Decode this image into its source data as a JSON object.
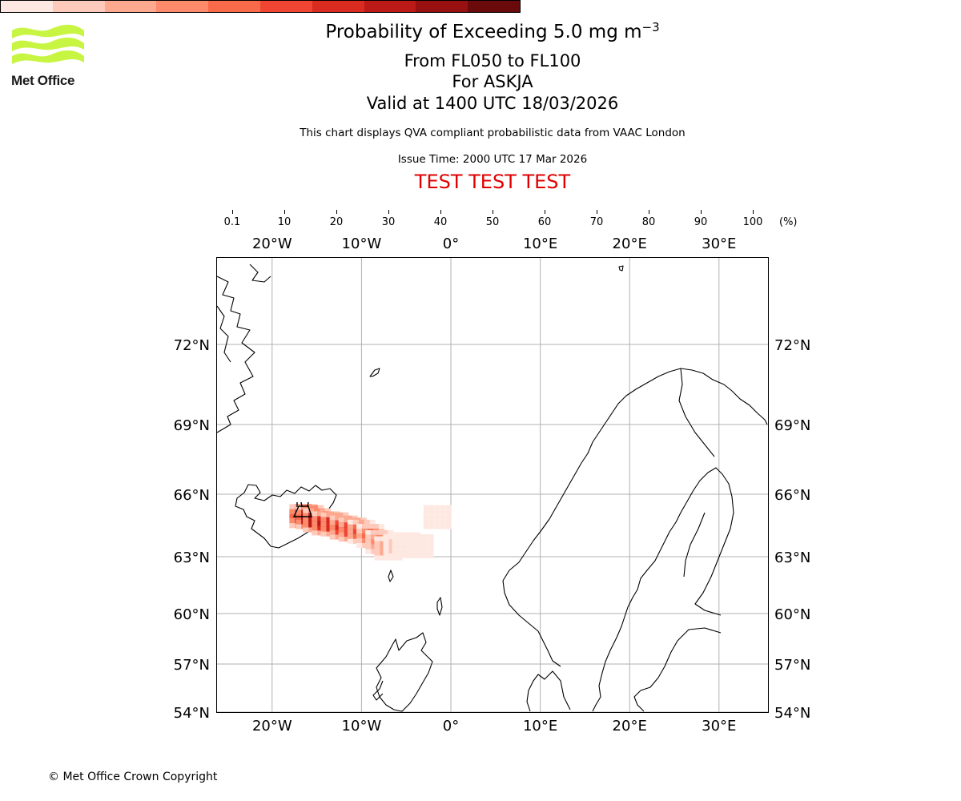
{
  "header": {
    "title_prefix": "Probability of Exceeding 5.0 mg m",
    "title_exponent": "−3",
    "level_range": "From FL050 to FL100",
    "volcano": "For ASKJA",
    "valid_time": "Valid at 1400 UTC 18/03/2026",
    "disclaimer": "This chart displays QVA compliant probabilistic data from VAAC London",
    "issue_time": "Issue Time: 2000 UTC 17 Mar 2026",
    "test_banner": "TEST TEST TEST"
  },
  "logo": {
    "text": "Met Office",
    "accent_color": "#c8f542"
  },
  "colorbar": {
    "tick_labels": [
      "0.1",
      "10",
      "20",
      "30",
      "40",
      "50",
      "60",
      "70",
      "80",
      "90",
      "100"
    ],
    "unit": "(%)",
    "colors": [
      "#fee9e2",
      "#fdcabb",
      "#fca98f",
      "#fc8a6b",
      "#f86a4a",
      "#ef4532",
      "#d92b20",
      "#bb1a16",
      "#96110f",
      "#6b0a0a"
    ]
  },
  "map": {
    "lon_labels": [
      "20°W",
      "10°W",
      "0°",
      "10°E",
      "20°E",
      "30°E"
    ],
    "lat_labels": [
      "72°N",
      "69°N",
      "66°N",
      "63°N",
      "60°N",
      "57°N",
      "54°N"
    ],
    "extent": {
      "lon_min": -26.3,
      "lon_max": 35.5,
      "lat_min": 54,
      "lat_max": 75
    },
    "gridline_color": "#b0b0b0"
  },
  "chart_data": {
    "type": "heatmap",
    "title": "Probability of Exceeding 5.0 mg m−3",
    "value_unit": "%",
    "bins": [
      0.1,
      10,
      20,
      30,
      40,
      50,
      60,
      70,
      80,
      90,
      100
    ],
    "volcano_location": {
      "lon": -16.8,
      "lat": 65.05
    },
    "plume": [
      {
        "lon": -16.5,
        "lat": 64.95,
        "p": 95
      },
      {
        "lon": -15.8,
        "lat": 64.9,
        "p": 90
      },
      {
        "lon": -15.0,
        "lat": 64.75,
        "p": 85
      },
      {
        "lon": -14.0,
        "lat": 64.6,
        "p": 80
      },
      {
        "lon": -13.0,
        "lat": 64.55,
        "p": 75
      },
      {
        "lon": -12.0,
        "lat": 64.4,
        "p": 70
      },
      {
        "lon": -11.0,
        "lat": 64.3,
        "p": 65
      },
      {
        "lon": -10.0,
        "lat": 64.2,
        "p": 55
      },
      {
        "lon": -9.0,
        "lat": 64.0,
        "p": 45
      },
      {
        "lon": -8.0,
        "lat": 63.7,
        "p": 35
      },
      {
        "lon": -7.0,
        "lat": 63.4,
        "p": 25
      },
      {
        "lon": -6.0,
        "lat": 63.5,
        "p": 15
      },
      {
        "lon": -5.0,
        "lat": 63.6,
        "p": 8
      },
      {
        "lon": -3.5,
        "lat": 63.5,
        "p": 5
      },
      {
        "lon": -1.5,
        "lat": 64.9,
        "p": 3
      }
    ]
  },
  "footer": {
    "copyright": "© Met Office Crown Copyright"
  }
}
